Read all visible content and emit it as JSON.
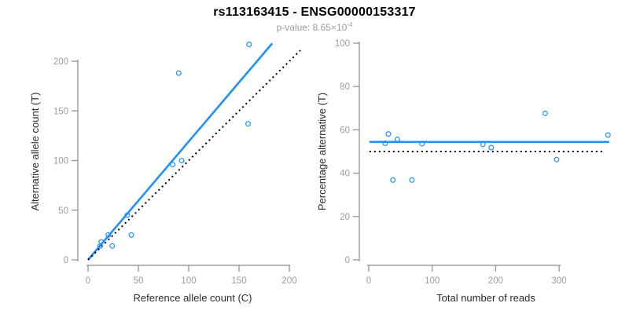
{
  "header": {
    "title": "rs113163415 - ENSG00000153317",
    "subtitle_text": "p-value: 8.65×10",
    "subtitle_exponent": "-4"
  },
  "colors": {
    "accent_blue": "#1E90FF",
    "line_black": "#000000",
    "axis_gray": "#8d8d8d",
    "tick_label_gray": "#9c9c9c",
    "axis_title_dark": "#2b2b2b",
    "background": "#ffffff"
  },
  "chart_data": [
    {
      "type": "scatter",
      "panel": "left",
      "xlabel": "Reference allele count (C)",
      "ylabel": "Alternative allele count (T)",
      "xlim": [
        0,
        200
      ],
      "ylim": [
        0,
        220
      ],
      "xticks": [
        0,
        50,
        100,
        150,
        200
      ],
      "yticks": [
        0,
        50,
        100,
        150,
        200
      ],
      "grid": false,
      "legend": "none",
      "points": [
        [
          12,
          14
        ],
        [
          13,
          18
        ],
        [
          20,
          25
        ],
        [
          24,
          14
        ],
        [
          39,
          45
        ],
        [
          43,
          25
        ],
        [
          84,
          96
        ],
        [
          93,
          100
        ],
        [
          90,
          188
        ],
        [
          159,
          137
        ],
        [
          160,
          217
        ]
      ],
      "lines": [
        {
          "name": "regression-line",
          "x1": 0,
          "y1": 0,
          "x2": 183,
          "y2": 218,
          "style": "solid",
          "color_key": "blue"
        },
        {
          "name": "identity-line",
          "x1": 0,
          "y1": 0,
          "x2": 211,
          "y2": 211,
          "style": "dotted",
          "color_key": "black"
        }
      ]
    },
    {
      "type": "scatter",
      "panel": "right",
      "xlabel": "Total number of reads",
      "ylabel": "Percentage alternative (T)",
      "xlim": [
        0,
        380
      ],
      "ylim": [
        0,
        100
      ],
      "xticks": [
        0,
        100,
        200,
        300
      ],
      "yticks": [
        0,
        20,
        40,
        60,
        80,
        100
      ],
      "grid": false,
      "legend": "none",
      "points": [
        [
          26,
          53.8
        ],
        [
          31,
          58.1
        ],
        [
          45,
          55.6
        ],
        [
          38,
          36.8
        ],
        [
          84,
          53.6
        ],
        [
          68,
          36.8
        ],
        [
          180,
          53.3
        ],
        [
          193,
          51.8
        ],
        [
          278,
          67.6
        ],
        [
          296,
          46.3
        ],
        [
          377,
          57.6
        ]
      ],
      "lines": [
        {
          "name": "mean-percentage-line",
          "x1": 1,
          "y1": 54.4,
          "x2": 379,
          "y2": 54.4,
          "style": "solid",
          "color_key": "blue"
        },
        {
          "name": "null-50-percent-line",
          "x1": 1,
          "y1": 50,
          "x2": 370,
          "y2": 50,
          "style": "dotted",
          "color_key": "black"
        }
      ]
    }
  ]
}
